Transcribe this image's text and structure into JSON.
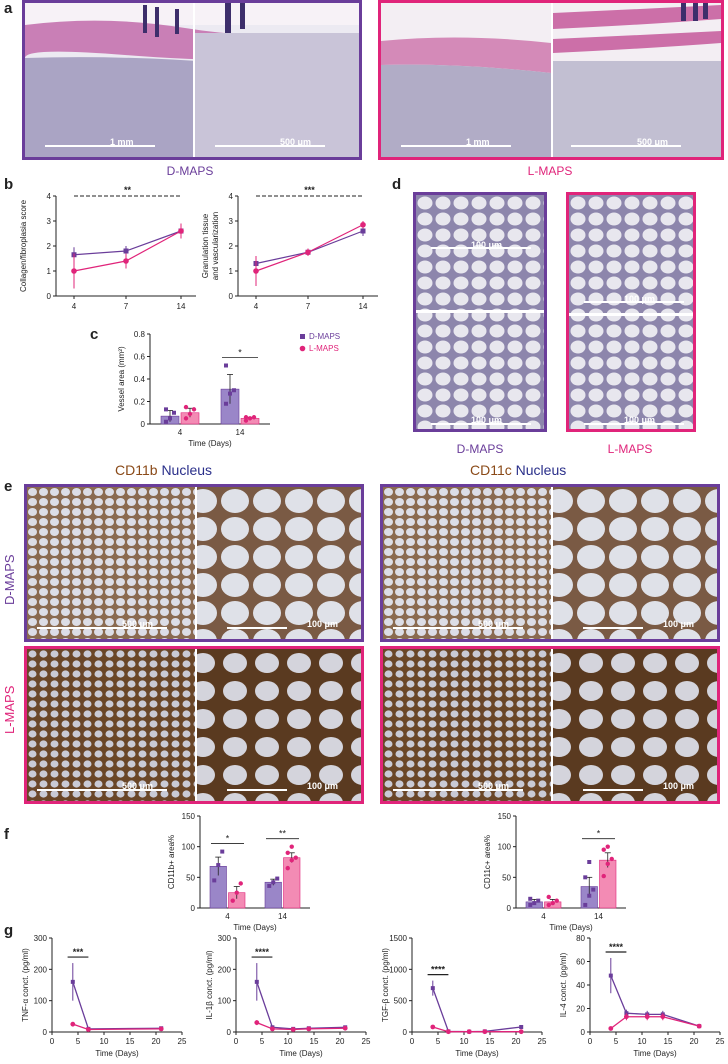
{
  "panels": {
    "a": "a",
    "b": "b",
    "c": "c",
    "d": "d",
    "e": "e",
    "f": "f",
    "g": "g"
  },
  "colors": {
    "dmaps": "#6a3d9a",
    "lmaps": "#e0247a",
    "dmaps_bar": "#9a86c8",
    "lmaps_bar": "#f38bb4"
  },
  "a": {
    "left_caption": "D-MAPS",
    "right_caption": "L-MAPS",
    "scale_1mm": "1 mm",
    "scale_500": "500 μm"
  },
  "d": {
    "scale_100": "100 μm",
    "left_caption": "D-MAPS",
    "right_caption": "L-MAPS"
  },
  "e": {
    "title_left_marker": "CD11b",
    "title_left_nucleus": "Nucleus",
    "title_right_marker": "CD11c",
    "title_right_nucleus": "Nucleus",
    "row1": "D-MAPS",
    "row2": "L-MAPS",
    "scale_500": "500 μm",
    "scale_100": "100 μm"
  },
  "chart_data": [
    {
      "id": "b1",
      "type": "line",
      "xlabel": "",
      "ylabel": "Collagen/fibroplasia score",
      "x": [
        4,
        7,
        14
      ],
      "xticks": [
        "4",
        "7",
        "14"
      ],
      "ylim": [
        0,
        4
      ],
      "yticks": [
        0,
        1,
        2,
        3,
        4
      ],
      "sig": "**",
      "series": [
        {
          "name": "D-MAPS",
          "values": [
            1.65,
            1.8,
            2.6
          ],
          "err": [
            0.3,
            0.2,
            0.25
          ]
        },
        {
          "name": "L-MAPS",
          "values": [
            1.0,
            1.4,
            2.6
          ],
          "err": [
            0.7,
            0.3,
            0.3
          ]
        }
      ]
    },
    {
      "id": "b2",
      "type": "line",
      "xlabel": "",
      "ylabel": "Granulation tissue and vascularization",
      "x": [
        4,
        7,
        14
      ],
      "xticks": [
        "4",
        "7",
        "14"
      ],
      "ylim": [
        0,
        4
      ],
      "yticks": [
        0,
        1,
        2,
        3,
        4
      ],
      "sig": "***",
      "series": [
        {
          "name": "D-MAPS",
          "values": [
            1.3,
            1.75,
            2.6
          ],
          "err": [
            0.3,
            0.15,
            0.2
          ]
        },
        {
          "name": "L-MAPS",
          "values": [
            1.0,
            1.75,
            2.85
          ],
          "err": [
            0.6,
            0.15,
            0.15
          ]
        }
      ]
    },
    {
      "id": "c",
      "type": "bar",
      "xlabel": "Time (Days)",
      "ylabel": "Vessel area (mm²)",
      "categories": [
        "4",
        "14"
      ],
      "ylim": [
        0,
        0.8
      ],
      "yticks": [
        "0",
        "0.2",
        "0.4",
        "0.6",
        "0.8"
      ],
      "sig_14": "*",
      "legend": [
        {
          "name": "D-MAPS"
        },
        {
          "name": "L-MAPS"
        }
      ],
      "series": [
        {
          "name": "D-MAPS",
          "values": [
            0.07,
            0.31
          ],
          "err": [
            0.05,
            0.13
          ],
          "points": [
            [
              0.02,
              0.05,
              0.1,
              0.13
            ],
            [
              0.18,
              0.27,
              0.3,
              0.52
            ]
          ]
        },
        {
          "name": "L-MAPS",
          "values": [
            0.1,
            0.05
          ],
          "err": [
            0.04,
            0.01
          ],
          "points": [
            [
              0.05,
              0.09,
              0.13,
              0.15
            ],
            [
              0.03,
              0.05,
              0.06,
              0.06
            ]
          ]
        }
      ]
    },
    {
      "id": "f1",
      "type": "bar",
      "xlabel": "Time (Days)",
      "ylabel": "CD11b+ area%",
      "categories": [
        "4",
        "14"
      ],
      "ylim": [
        0,
        150
      ],
      "yticks": [
        "0",
        "50",
        "100",
        "150"
      ],
      "sig_4": "*",
      "sig_14": "**",
      "series": [
        {
          "name": "D-MAPS",
          "values": [
            68,
            42
          ],
          "err": [
            15,
            5
          ],
          "points": [
            [
              45,
              70,
              92
            ],
            [
              36,
              42,
              48
            ]
          ]
        },
        {
          "name": "L-MAPS",
          "values": [
            25,
            82
          ],
          "err": [
            10,
            8
          ],
          "points": [
            [
              12,
              25,
              40
            ],
            [
              65,
              78,
              82,
              90,
              100
            ]
          ]
        }
      ]
    },
    {
      "id": "f2",
      "type": "bar",
      "xlabel": "Time (Days)",
      "ylabel": "CD11c+ area%",
      "categories": [
        "4",
        "14"
      ],
      "ylim": [
        0,
        150
      ],
      "yticks": [
        "0",
        "50",
        "100",
        "150"
      ],
      "sig_14": "*",
      "series": [
        {
          "name": "D-MAPS",
          "values": [
            10,
            35
          ],
          "err": [
            4,
            15
          ],
          "points": [
            [
              5,
              8,
              12,
              15
            ],
            [
              5,
              20,
              30,
              50,
              75
            ]
          ]
        },
        {
          "name": "L-MAPS",
          "values": [
            10,
            78
          ],
          "err": [
            4,
            12
          ],
          "points": [
            [
              5,
              8,
              12,
              18
            ],
            [
              52,
              72,
              80,
              95,
              100
            ]
          ]
        }
      ]
    },
    {
      "id": "g1",
      "type": "line",
      "xlabel": "Time (Days)",
      "ylabel": "TNF-α conct. (pg/ml)",
      "xlim": [
        0,
        25
      ],
      "xticks": [
        "0",
        "5",
        "10",
        "15",
        "20",
        "25"
      ],
      "ylim": [
        0,
        300
      ],
      "yticks": [
        "0",
        "100",
        "200",
        "300"
      ],
      "sig": "***",
      "series": [
        {
          "name": "D-MAPS",
          "x": [
            4,
            7,
            21
          ],
          "values": [
            160,
            10,
            12
          ],
          "err": [
            60,
            0,
            0
          ]
        },
        {
          "name": "L-MAPS",
          "x": [
            4,
            7,
            21
          ],
          "values": [
            25,
            8,
            10
          ],
          "err": [
            5,
            0,
            0
          ]
        }
      ]
    },
    {
      "id": "g2",
      "type": "line",
      "xlabel": "Time (Days)",
      "ylabel": "IL-1β conct. (pg/ml)",
      "xlim": [
        0,
        25
      ],
      "xticks": [
        "0",
        "5",
        "10",
        "15",
        "20",
        "25"
      ],
      "ylim": [
        0,
        300
      ],
      "yticks": [
        "0",
        "100",
        "200",
        "300"
      ],
      "sig": "****",
      "series": [
        {
          "name": "D-MAPS",
          "x": [
            4,
            7,
            11,
            14,
            21
          ],
          "values": [
            160,
            15,
            10,
            12,
            15
          ],
          "err": [
            60,
            0,
            0,
            0,
            0
          ]
        },
        {
          "name": "L-MAPS",
          "x": [
            4,
            7,
            11,
            14,
            21
          ],
          "values": [
            30,
            10,
            8,
            10,
            12
          ],
          "err": [
            8,
            0,
            0,
            0,
            0
          ]
        }
      ]
    },
    {
      "id": "g3",
      "type": "line",
      "xlabel": "Time (Days)",
      "ylabel": "TGF-β conct. (pg/ml)",
      "xlim": [
        0,
        25
      ],
      "xticks": [
        "0",
        "5",
        "10",
        "15",
        "20",
        "25"
      ],
      "ylim": [
        0,
        1500
      ],
      "yticks": [
        "0",
        "500",
        "1000",
        "1500"
      ],
      "sig": "****",
      "series": [
        {
          "name": "D-MAPS",
          "x": [
            4,
            7,
            11,
            14,
            21
          ],
          "values": [
            700,
            10,
            5,
            10,
            80
          ],
          "err": [
            120,
            0,
            0,
            0,
            0
          ]
        },
        {
          "name": "L-MAPS",
          "x": [
            4,
            7,
            11,
            14,
            21
          ],
          "values": [
            80,
            5,
            5,
            5,
            5
          ],
          "err": [
            20,
            0,
            0,
            0,
            0
          ]
        }
      ]
    },
    {
      "id": "g4",
      "type": "line",
      "xlabel": "Time (Days)",
      "ylabel": "IL-4 conct. (pg/ml)",
      "xlim": [
        0,
        25
      ],
      "xticks": [
        "0",
        "5",
        "10",
        "15",
        "20",
        "25"
      ],
      "ylim": [
        0,
        80
      ],
      "yticks": [
        "0",
        "20",
        "40",
        "60",
        "80"
      ],
      "sig": "****",
      "series": [
        {
          "name": "D-MAPS",
          "x": [
            4,
            7,
            11,
            14,
            21
          ],
          "values": [
            48,
            16,
            15,
            15,
            5
          ],
          "err": [
            15,
            3,
            3,
            3,
            1
          ]
        },
        {
          "name": "L-MAPS",
          "x": [
            4,
            7,
            11,
            14,
            21
          ],
          "values": [
            3,
            13,
            13,
            13,
            5
          ],
          "err": [
            1,
            3,
            3,
            3,
            1
          ]
        }
      ]
    }
  ]
}
